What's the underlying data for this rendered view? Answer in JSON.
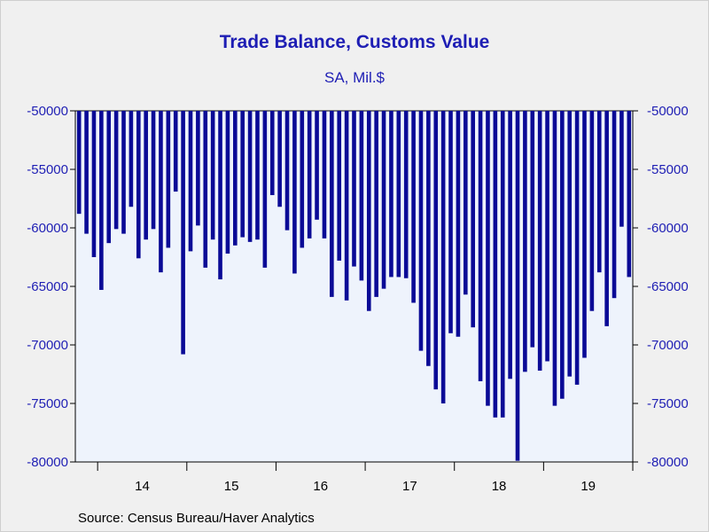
{
  "chart_data": {
    "type": "bar",
    "title": "Trade Balance, Customs Value",
    "subtitle": "SA, Mil.$",
    "source": "Source:  Census Bureau/Haver Analytics",
    "ylim": [
      -80000,
      -50000
    ],
    "yticks": [
      -50000,
      -55000,
      -60000,
      -65000,
      -70000,
      -75000,
      -80000
    ],
    "year_labels": [
      "14",
      "15",
      "16",
      "17",
      "18",
      "19"
    ],
    "bar_color": "#0a0a96",
    "plot_bg": "#eef3fc",
    "start": "2013-10",
    "series": [
      {
        "values": [
          -58800,
          -60500,
          -62500,
          -65300,
          -61300,
          -60100,
          -60500,
          -58200,
          -62600,
          -61000,
          -60100,
          -63800,
          -61700,
          -56900,
          -70800,
          -62000,
          -59800,
          -63400,
          -61000,
          -64400,
          -62200,
          -61500,
          -60800,
          -61200,
          -61000,
          -63400,
          -57200,
          -58200,
          -60200,
          -63900,
          -61700,
          -60900,
          -59300,
          -60900,
          -65900,
          -62800,
          -66200,
          -63300,
          -64500,
          -67100,
          -65900,
          -65200,
          -64200,
          -64200,
          -64300,
          -66400,
          -70500,
          -71800,
          -73800,
          -75000,
          -69000,
          -69300,
          -65700,
          -68500,
          -73100,
          -75200,
          -76200,
          -76200,
          -72900,
          -79900,
          -72300,
          -70200,
          -72200,
          -71400,
          -75200,
          -74600,
          -72700,
          -73400,
          -71100,
          -67100,
          -63800,
          -68400,
          -66000,
          -59900,
          -64200
        ]
      }
    ]
  }
}
